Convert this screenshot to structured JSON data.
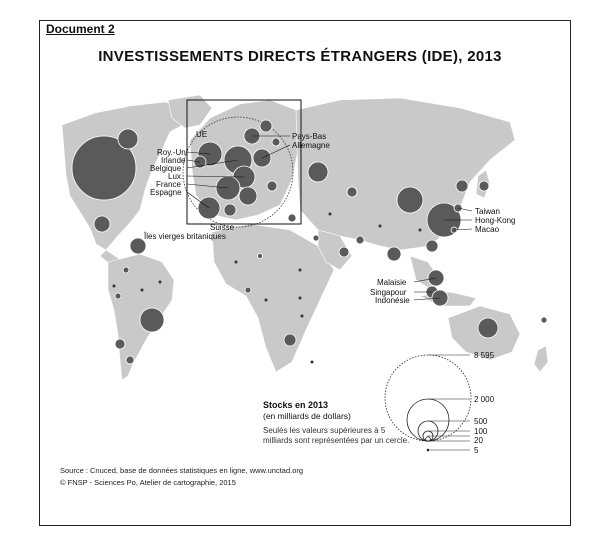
{
  "document_label": "Document 2",
  "title": "INVESTISSEMENTS  DIRECTS  ÉTRANGERS (IDE), 2013",
  "labels": {
    "ue": "UE",
    "roy_uni": "Roy.-Uni",
    "irlande": "Irlande",
    "belgique": "Belgique",
    "lux": "Lux.",
    "france": "France",
    "espagne": "Espagne",
    "pays_bas": "Pays-Bas",
    "allemagne": "Allemagne",
    "suisse": "Suisse",
    "iles_vierges": "Îles vierges britaniques",
    "taiwan": "Taiwan",
    "hong_kong": "Hong-Kong",
    "macao": "Macao",
    "malaisie": "Malaisie",
    "singapour": "Singapour",
    "indonesie": "Indonésie"
  },
  "legend": {
    "title": "Stocks en 2013",
    "unit": "(en milliards de dollars)",
    "note": "Seulés les valeurs supérieures à 5 milliards sont représentées par un cercle.",
    "values": [
      "8 595",
      "2 000",
      "500",
      "100",
      "20",
      "5"
    ]
  },
  "source": "Source : Cnuced, base de données statistiques en ligne, www.unctad.org",
  "credit": "© FNSP - Sciences Po, Atelier de cartographie, 2015",
  "colors": {
    "land": "#c9c9c9",
    "circle": "#5a5a5a",
    "frame": "#222222"
  }
}
